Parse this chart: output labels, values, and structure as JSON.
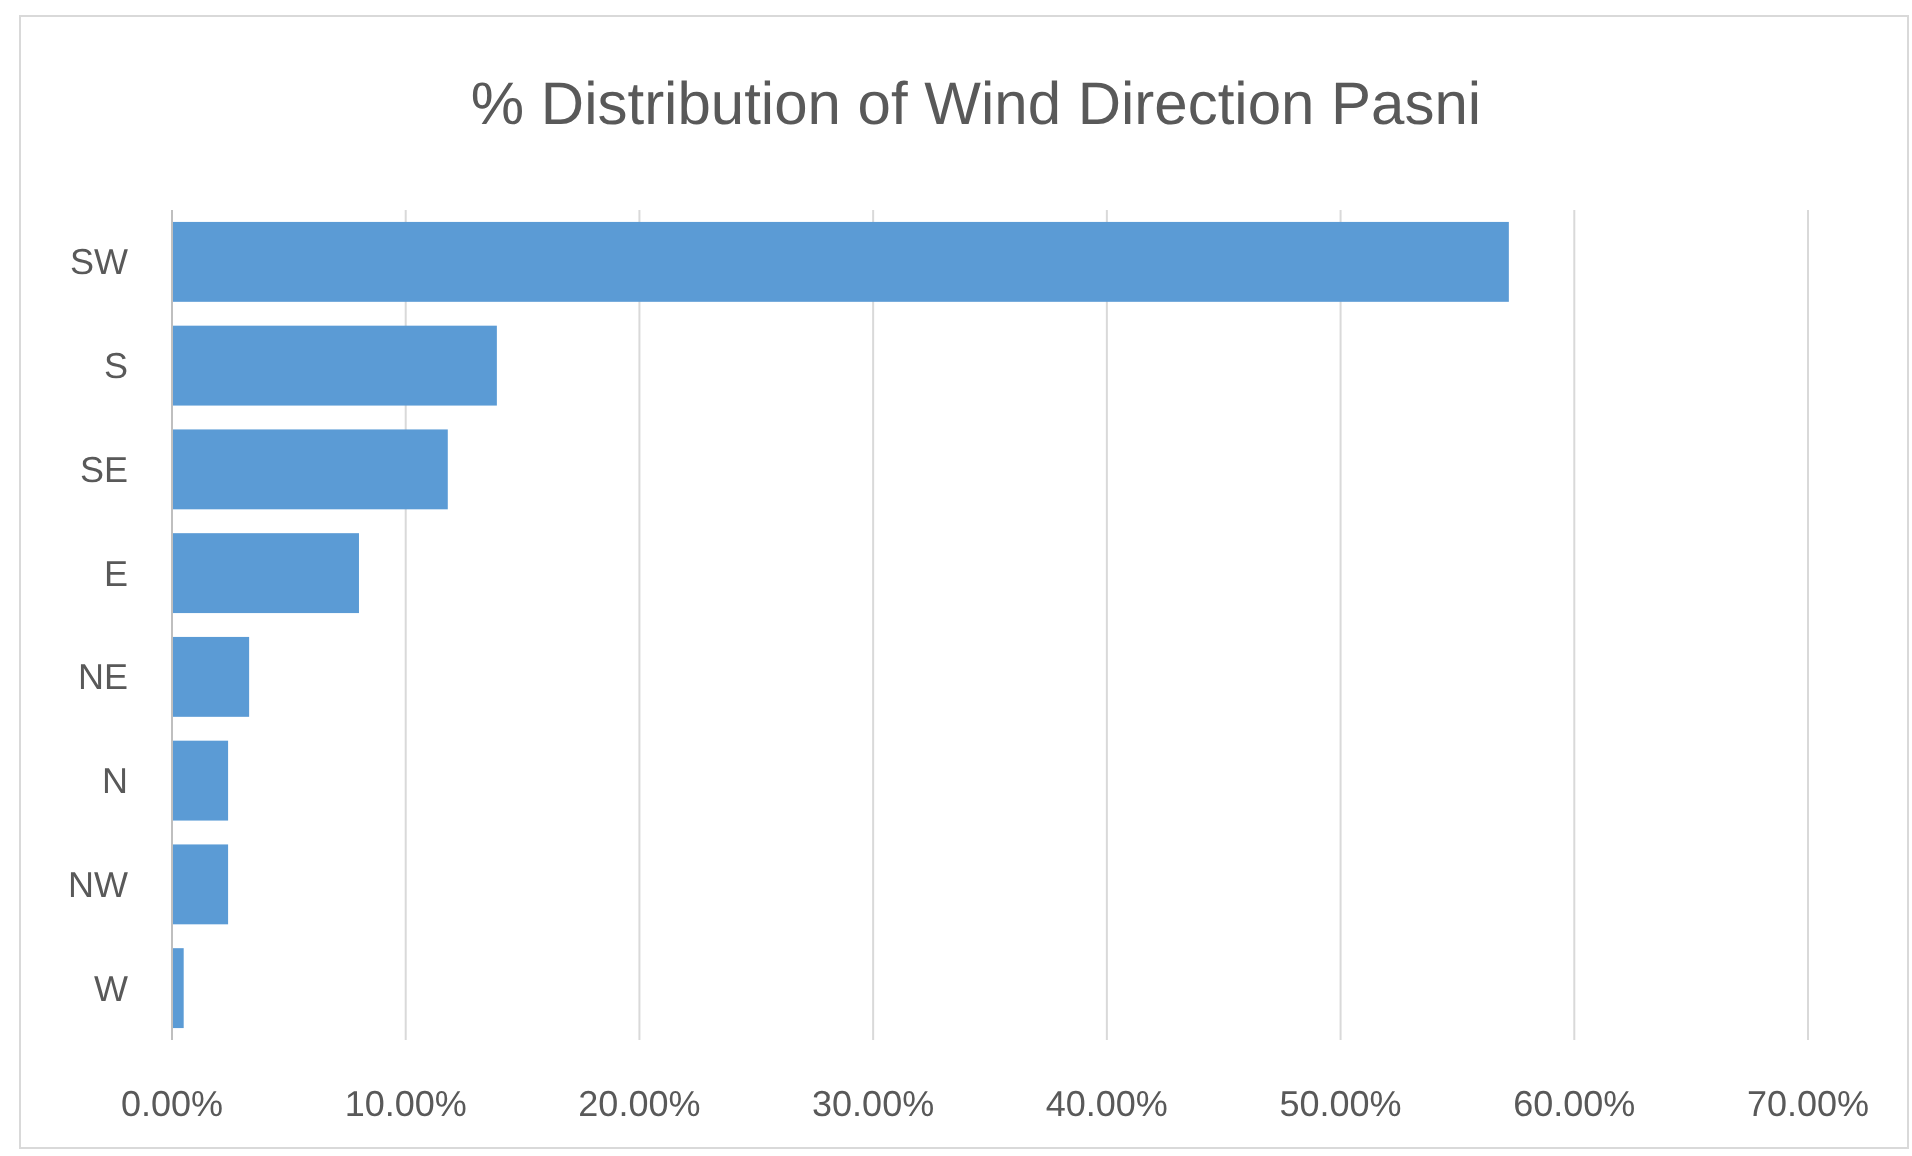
{
  "chart_data": {
    "type": "bar",
    "orientation": "horizontal",
    "title": "% Distribution of Wind Direction Pasni",
    "categories": [
      "SW",
      "S",
      "SE",
      "E",
      "NE",
      "N",
      "NW",
      "W"
    ],
    "values": [
      57.2,
      13.9,
      11.8,
      8.0,
      3.3,
      2.4,
      2.4,
      0.5
    ],
    "color": "#5b9bd5",
    "xlim": [
      0,
      70
    ],
    "xticks": [
      {
        "value": 0,
        "label": "0.00%"
      },
      {
        "value": 10,
        "label": "10.00%"
      },
      {
        "value": 20,
        "label": "20.00%"
      },
      {
        "value": 30,
        "label": "30.00%"
      },
      {
        "value": 40,
        "label": "40.00%"
      },
      {
        "value": 50,
        "label": "50.00%"
      },
      {
        "value": 60,
        "label": "60.00%"
      },
      {
        "value": 70,
        "label": "70.00%"
      }
    ],
    "grid": "x",
    "legend": false
  }
}
